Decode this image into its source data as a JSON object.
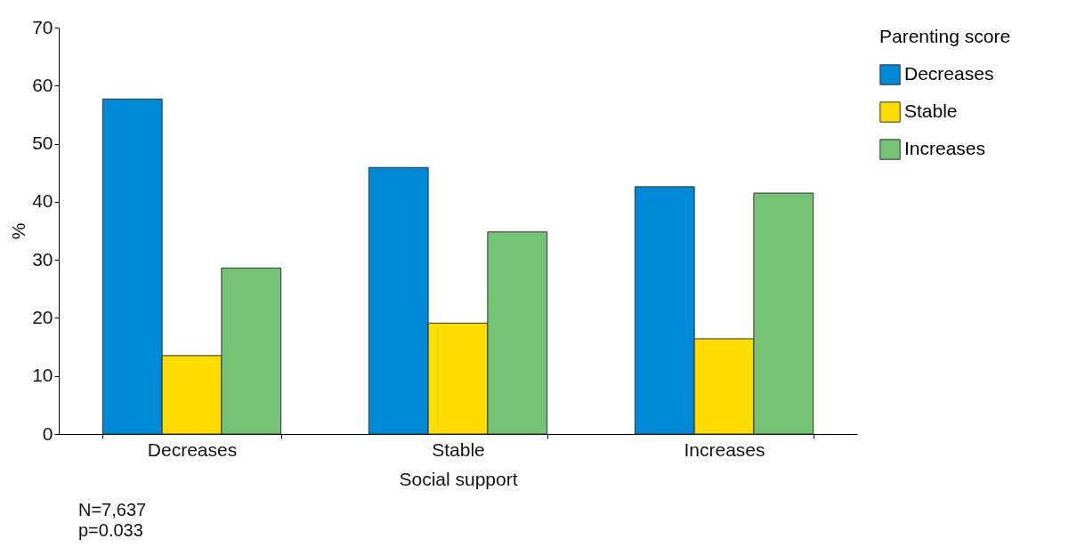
{
  "chart_data": {
    "type": "bar",
    "xlabel": "Social support",
    "ylabel": "%",
    "legend_title": "Parenting score",
    "categories": [
      "Decreases",
      "Stable",
      "Increases"
    ],
    "series": [
      {
        "name": "Decreases",
        "color": "#0089d6",
        "values": [
          57.7,
          45.9,
          42.6
        ]
      },
      {
        "name": "Stable",
        "color": "#ffdc00",
        "values": [
          13.5,
          19.1,
          16.4
        ]
      },
      {
        "name": "Increases",
        "color": "#74c274",
        "values": [
          28.6,
          34.8,
          41.5
        ]
      }
    ],
    "ylim": [
      0,
      70
    ],
    "yticks": [
      0,
      10,
      20,
      30,
      40,
      50,
      60,
      70
    ],
    "grid": false,
    "legend": "top right",
    "annotations": [
      "N=7,637",
      "p=0.033"
    ]
  }
}
